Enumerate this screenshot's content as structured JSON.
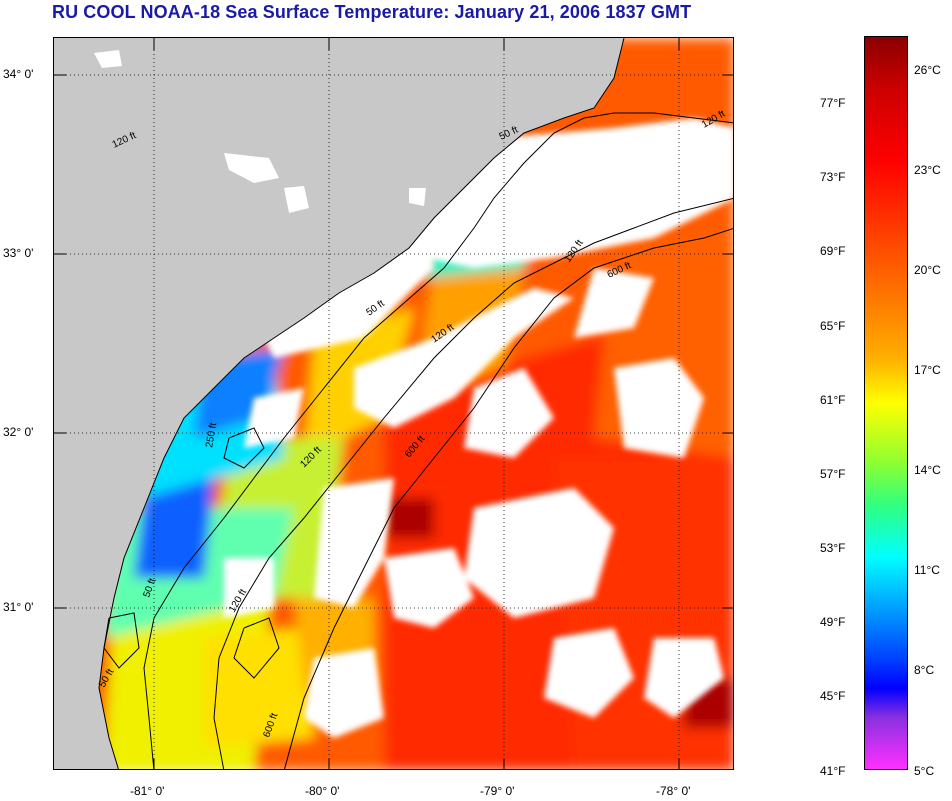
{
  "title": "RU COOL  NOAA-18  Sea Surface Temperature:  January 21, 2006 1837 GMT",
  "latitude_labels": [
    "34° 0'",
    "33° 0'",
    "32° 0'",
    "31° 0'"
  ],
  "longitude_labels": [
    "-81° 0'",
    "-80° 0'",
    "-79° 0'",
    "-78° 0'"
  ],
  "colorbar": {
    "fahrenheit_labels": [
      "77°F",
      "73°F",
      "69°F",
      "65°F",
      "61°F",
      "57°F",
      "53°F",
      "49°F",
      "45°F",
      "41°F"
    ],
    "celsius_labels": [
      "26°C",
      "23°C",
      "20°C",
      "17°C",
      "14°C",
      "11°C",
      "8°C",
      "5°C"
    ],
    "min_celsius": 5,
    "max_celsius": 27
  },
  "isobath_labels": [
    "50 ft",
    "50 ft",
    "50 ft",
    "50 ft",
    "120 ft",
    "120 ft",
    "120 ft",
    "120 ft",
    "120 ft",
    "250 ft",
    "600 ft",
    "600 ft",
    "600 ft",
    "120 ft"
  ],
  "colors": {
    "land": "#c8c8c8",
    "cloud_nodata": "#ffffff",
    "title": "#1a1aa8",
    "contour": "#000000"
  }
}
